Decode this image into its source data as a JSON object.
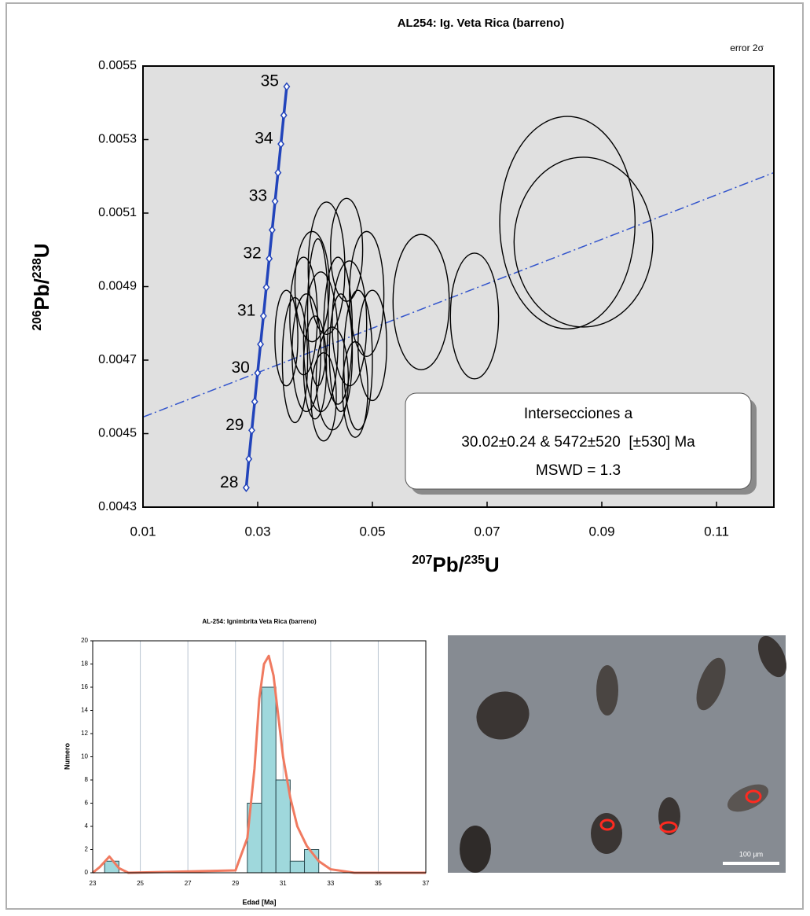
{
  "chart_data": [
    {
      "type": "concordia",
      "title": "AL254: Ig. Veta Rica (barreno)",
      "note": "error 2σ",
      "xlabel": [
        "207",
        "Pb/",
        "235",
        "U"
      ],
      "ylabel": [
        "206",
        "Pb/",
        "238",
        "U"
      ],
      "xlim": [
        0.01,
        0.12
      ],
      "xticks": [
        0.01,
        0.03,
        0.05,
        0.07,
        0.09,
        0.11
      ],
      "ylim": [
        0.0043,
        0.0055
      ],
      "yticks": [
        0.0043,
        0.0045,
        0.0047,
        0.0049,
        0.0051,
        0.0053,
        0.0055
      ],
      "concordia": {
        "color": "#2244bb",
        "x": [
          0.028,
          0.02846,
          0.02897,
          0.02948,
          0.02998,
          0.03049,
          0.031,
          0.0315,
          0.03201,
          0.03252,
          0.03303,
          0.03354,
          0.03405,
          0.03455,
          0.03506
        ],
        "y": [
          0.004353,
          0.004431,
          0.004509,
          0.004587,
          0.004665,
          0.004743,
          0.00482,
          0.004898,
          0.004976,
          0.005054,
          0.005132,
          0.00521,
          0.005288,
          0.005366,
          0.005444
        ],
        "labels": [
          28,
          null,
          29,
          null,
          30,
          null,
          31,
          null,
          32,
          null,
          33,
          null,
          34,
          null,
          35
        ]
      },
      "discordia": {
        "color": "#3355cc",
        "x": [
          0.01,
          0.12
        ],
        "y": [
          0.004545,
          0.00521
        ]
      },
      "ellipses": {
        "color": "#000000",
        "x": [
          0.084,
          0.0868,
          0.0678,
          0.0585,
          0.0365,
          0.0385,
          0.04,
          0.041,
          0.0395,
          0.042,
          0.044,
          0.0445,
          0.043,
          0.046,
          0.0475,
          0.049,
          0.0455,
          0.0415,
          0.038,
          0.035,
          0.047,
          0.05,
          0.0405
        ],
        "y": [
          0.005074,
          0.005021,
          0.00482,
          0.004858,
          0.0047,
          0.00472,
          0.00468,
          0.00475,
          0.0049,
          0.00495,
          0.00478,
          0.00472,
          0.00465,
          0.0048,
          0.0047,
          0.00488,
          0.005,
          0.0046,
          0.00482,
          0.00476,
          0.00462,
          0.00474,
          0.00483
        ],
        "x_err": [
          0.0118,
          0.0121,
          0.0042,
          0.0049,
          0.0022,
          0.0025,
          0.002,
          0.003,
          0.003,
          0.0032,
          0.0025,
          0.002,
          0.0028,
          0.003,
          0.0025,
          0.003,
          0.0028,
          0.0022,
          0.0024,
          0.002,
          0.0022,
          0.0025,
          0.0018
        ],
        "y_err": [
          0.000289,
          0.000231,
          0.000171,
          0.000184,
          0.00017,
          0.00016,
          0.00014,
          0.00019,
          0.00015,
          0.00018,
          0.0002,
          0.00016,
          0.00014,
          0.00017,
          0.00019,
          0.00017,
          0.00014,
          0.00012,
          0.00016,
          0.00013,
          0.00013,
          0.00015,
          0.0002
        ]
      },
      "annotation": [
        "Intersecciones a",
        "30.02±0.24 & 5472±520  [±530] Ma",
        "MSWD = 1.3"
      ]
    },
    {
      "type": "histogram",
      "title": "AL-254: Ignimbrita Veta Rica (barreno)",
      "xlabel": "Edad [Ma]",
      "ylabel": "Numero",
      "bins": [
        23.5,
        24.1,
        24.7,
        25.3,
        25.9,
        26.5,
        27.1,
        27.7,
        28.3,
        28.9,
        29.5,
        30.1,
        30.7,
        31.3,
        31.9,
        32.5
      ],
      "values": [
        1,
        0,
        0,
        0,
        0,
        0,
        0,
        0,
        0,
        0,
        6,
        16,
        8,
        1,
        2
      ],
      "color": "#9fd8dc",
      "curve": {
        "color": "#f07a60",
        "x": [
          23,
          23.3,
          23.7,
          24.1,
          24.5,
          29,
          29.5,
          29.8,
          30,
          30.2,
          30.4,
          30.6,
          30.8,
          31,
          31.3,
          31.6,
          32,
          32.5,
          33,
          34,
          37
        ],
        "y": [
          0,
          0.5,
          1.4,
          0.4,
          0,
          0.2,
          3,
          9,
          15,
          18,
          18.7,
          17,
          13.5,
          10,
          6.5,
          4,
          2.3,
          1,
          0.3,
          0,
          0
        ]
      },
      "xlim": [
        23,
        37
      ],
      "xticks": [
        23,
        25,
        27,
        29,
        31,
        33,
        35,
        37
      ],
      "ylim": [
        0,
        20
      ],
      "yticks": [
        0,
        2,
        4,
        6,
        8,
        10,
        12,
        14,
        16,
        18,
        20
      ],
      "grid": "x"
    }
  ],
  "photo": {
    "scale_label": "100 µm"
  }
}
